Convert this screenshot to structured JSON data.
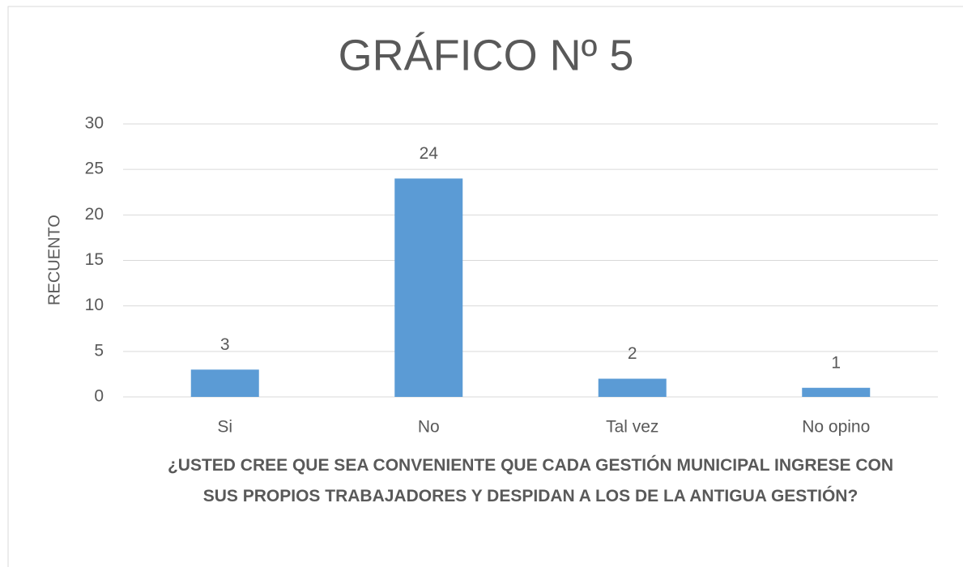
{
  "chart_data": {
    "type": "bar",
    "title": "GRÁFICO Nº 5",
    "ylabel": "RECUENTO",
    "xlabel": "¿USTED CREE QUE SEA CONVENIENTE QUE CADA GESTIÓN MUNICIPAL INGRESE CON SUS PROPIOS TRABAJADORES Y DESPIDAN A LOS DE LA ANTIGUA GESTIÓN?",
    "categories": [
      "Si",
      "No",
      "Tal vez",
      "No opino"
    ],
    "values": [
      3,
      24,
      2,
      1
    ],
    "color": "#5b9bd5",
    "ylim": [
      0,
      30
    ],
    "yticks": [
      0,
      5,
      10,
      15,
      20,
      25,
      30
    ],
    "grid": true
  }
}
